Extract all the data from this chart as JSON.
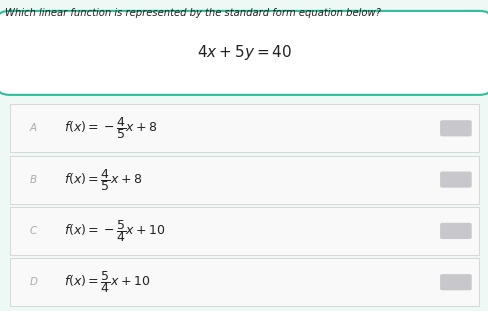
{
  "question": "Which linear function is represented by the standard form equation below?",
  "equation": "$4x +5y= 40$",
  "background_color": "#eef9f6",
  "box_border_color": "#2dbd9a",
  "box_bg_color": "#ffffff",
  "answer_bg_color": "#f9f9f9",
  "answer_border_color": "#cccccc",
  "letter_color": "#aaaaaa",
  "text_color": "#222222",
  "radio_color": "#c8c8cc",
  "options": [
    {
      "letter": "A",
      "formula": "$f(x)= -\\dfrac{4}{5}x+8$"
    },
    {
      "letter": "B",
      "formula": "$f(x)=\\dfrac{4}{5}x+8$"
    },
    {
      "letter": "C",
      "formula": "$f(x)= -\\dfrac{5}{4}x+10$"
    },
    {
      "letter": "D",
      "formula": "$f(x)=\\dfrac{5}{4}x+10$"
    }
  ]
}
